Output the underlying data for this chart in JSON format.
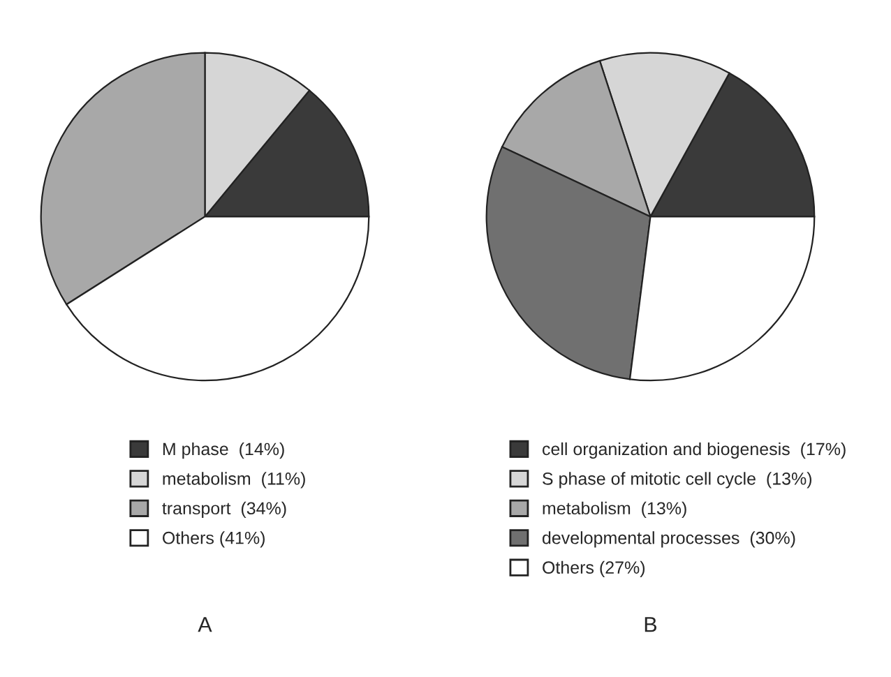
{
  "chart_data": [
    {
      "type": "pie",
      "title": "A",
      "categories": [
        "M phase  (14%)",
        "metabolism  (11%)",
        "transport  (34%)",
        "Others (41%)"
      ],
      "values": [
        14,
        11,
        34,
        41
      ],
      "colors": [
        "#3a3a3a",
        "#d6d6d6",
        "#a8a8a8",
        "#ffffff"
      ],
      "legend": "bottom"
    },
    {
      "type": "pie",
      "title": "B",
      "categories": [
        "cell organization and biogenesis  (17%)",
        "S phase of mitotic cell cycle  (13%)",
        "metabolism  (13%)",
        "developmental processes  (30%)",
        "Others (27%)"
      ],
      "values": [
        17,
        13,
        13,
        30,
        27
      ],
      "colors": [
        "#3a3a3a",
        "#d6d6d6",
        "#a8a8a8",
        "#707070",
        "#ffffff"
      ],
      "legend": "bottom"
    }
  ]
}
